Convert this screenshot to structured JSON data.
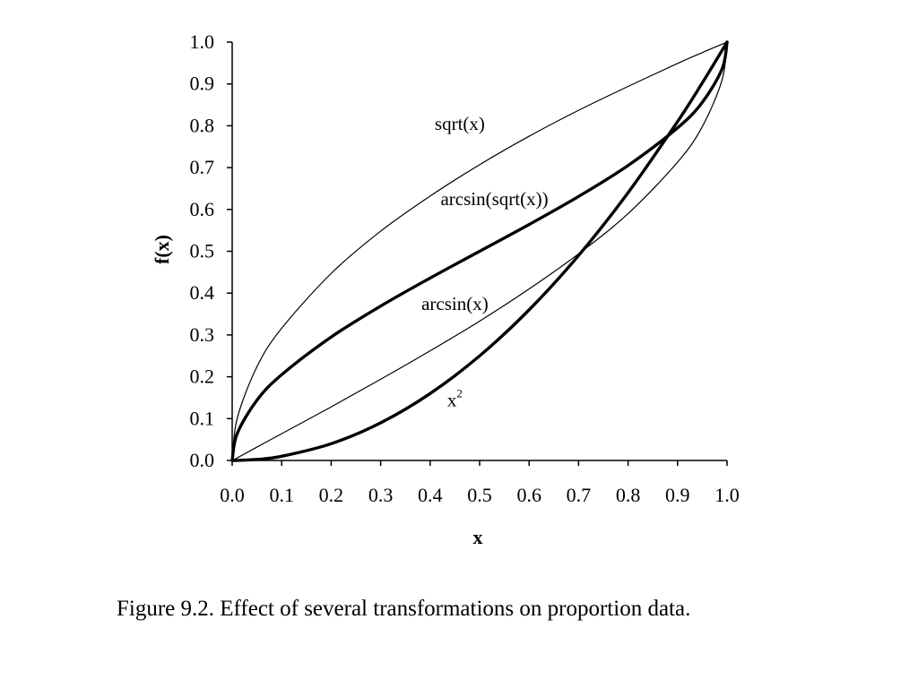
{
  "caption": "Figure 9.2.  Effect of several transformations on proportion data.",
  "chart_data": {
    "type": "line",
    "xlabel": "x",
    "ylabel": "f(x)",
    "xlim": [
      0.0,
      1.0
    ],
    "ylim": [
      0.0,
      1.0
    ],
    "xticks": [
      "0.0",
      "0.1",
      "0.2",
      "0.3",
      "0.4",
      "0.5",
      "0.6",
      "0.7",
      "0.8",
      "0.9",
      "1.0"
    ],
    "yticks": [
      "0.0",
      "0.1",
      "0.2",
      "0.3",
      "0.4",
      "0.5",
      "0.6",
      "0.7",
      "0.8",
      "0.9",
      "1.0"
    ],
    "grid": false,
    "legend": "none",
    "x": [
      0.0,
      0.01,
      0.05,
      0.1,
      0.2,
      0.3,
      0.4,
      0.5,
      0.6,
      0.7,
      0.8,
      0.9,
      0.95,
      0.99,
      1.0
    ],
    "series": [
      {
        "name": "sqrt(x)",
        "label_x": 0.46,
        "label_y": 0.79,
        "color": "#000000",
        "weight": "thin",
        "values": [
          0.0,
          0.1,
          0.224,
          0.316,
          0.447,
          0.548,
          0.632,
          0.707,
          0.775,
          0.837,
          0.894,
          0.949,
          0.975,
          0.995,
          1.0
        ]
      },
      {
        "name": "arcsin(sqrt(x))",
        "label_x": 0.53,
        "label_y": 0.61,
        "color": "#000000",
        "weight": "thick",
        "values": [
          0.0,
          0.064,
          0.144,
          0.205,
          0.295,
          0.369,
          0.436,
          0.5,
          0.564,
          0.631,
          0.705,
          0.795,
          0.856,
          0.936,
          1.0
        ]
      },
      {
        "name": "arcsin(x)",
        "label_x": 0.45,
        "label_y": 0.36,
        "color": "#000000",
        "weight": "thin",
        "values": [
          0.0,
          0.006,
          0.032,
          0.064,
          0.128,
          0.194,
          0.262,
          0.333,
          0.41,
          0.494,
          0.59,
          0.713,
          0.798,
          0.91,
          1.0
        ]
      },
      {
        "name": "x",
        "name_superscript": "2",
        "label_x": 0.45,
        "label_y": 0.13,
        "color": "#000000",
        "weight": "thick",
        "values": [
          0.0,
          0.0001,
          0.0025,
          0.01,
          0.04,
          0.09,
          0.16,
          0.25,
          0.36,
          0.49,
          0.64,
          0.81,
          0.9025,
          0.9801,
          1.0
        ]
      }
    ]
  }
}
